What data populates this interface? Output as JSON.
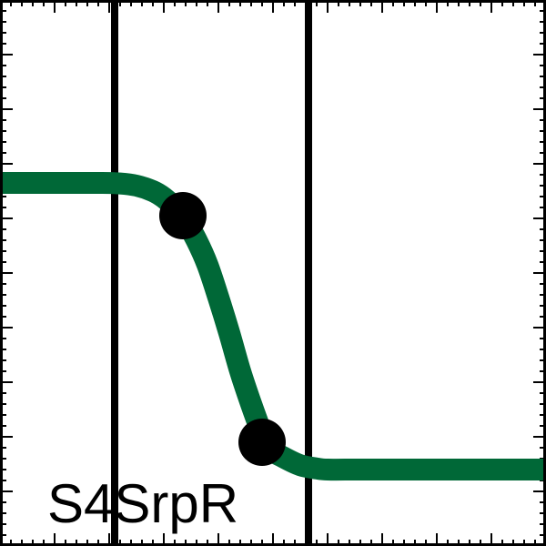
{
  "chart_data": {
    "type": "line",
    "label": "S4SrpR",
    "xlim": [
      0,
      100
    ],
    "ylim": [
      0,
      100
    ],
    "grid": false,
    "colors": {
      "curve": "#006837",
      "markers": "#000000",
      "vlines": "#000000",
      "frame": "#000000"
    },
    "series": [
      {
        "x": [
          0,
          5,
          10,
          15,
          18,
          22,
          25,
          28,
          30,
          32,
          34,
          36,
          38,
          40,
          42,
          44,
          46,
          48,
          49,
          52,
          55,
          58,
          60,
          65,
          70,
          80,
          90,
          100
        ],
        "values": [
          66.5,
          66.5,
          66.5,
          66.5,
          66.5,
          66.4,
          66.0,
          65.0,
          63.8,
          62.0,
          59.5,
          56.0,
          51.5,
          45.5,
          39.0,
          32.0,
          26.0,
          20.5,
          18.0,
          16.2,
          14.8,
          14.2,
          14.0,
          14.0,
          14.0,
          14.0,
          14.0,
          14.0
        ]
      }
    ],
    "markers": [
      {
        "x": 33.5,
        "y": 60.5
      },
      {
        "x": 48.0,
        "y": 19.0
      }
    ],
    "vlines": [
      21,
      56.5
    ]
  }
}
